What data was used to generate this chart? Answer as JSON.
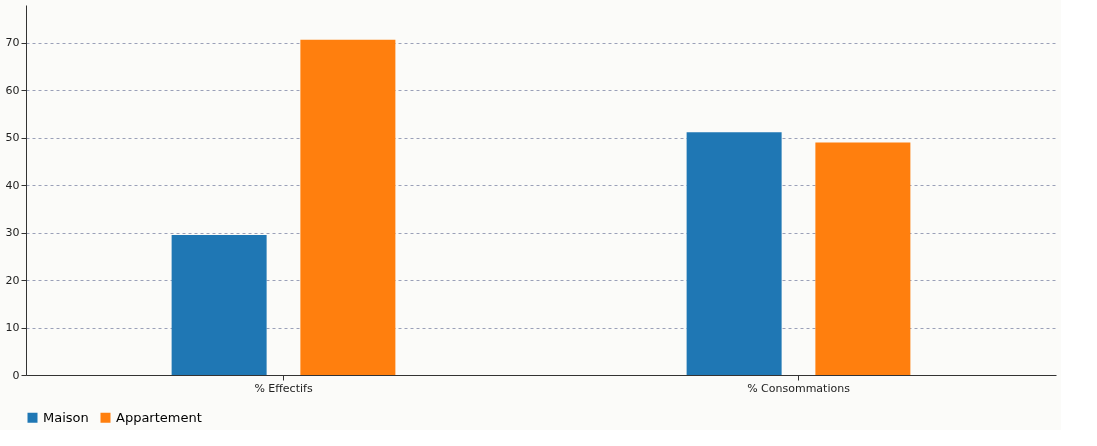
{
  "chart_data": {
    "type": "bar",
    "categories": [
      "% Effectifs",
      "% Consommations"
    ],
    "series": [
      {
        "name": "Maison",
        "color": "#1f77b4",
        "values": [
          29.5,
          51.2
        ]
      },
      {
        "name": "Appartement",
        "color": "#ff7f0e",
        "values": [
          70.7,
          49.0
        ]
      }
    ],
    "ylim": [
      0,
      78
    ],
    "yticks": [
      0,
      10,
      20,
      30,
      40,
      50,
      60,
      70
    ],
    "grid": "y",
    "legend": "bottom"
  }
}
